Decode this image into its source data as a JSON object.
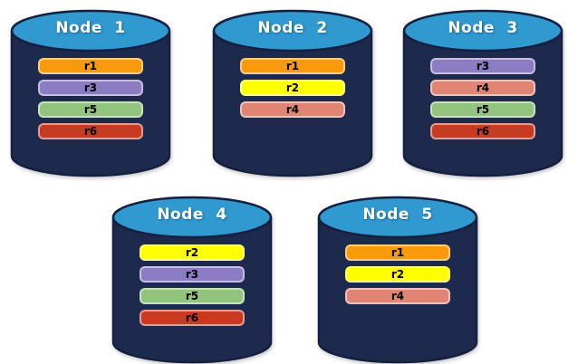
{
  "diagram": {
    "description": "Database nodes with replica assignments",
    "colors": {
      "cylinder_body": "#1E2A4D",
      "cylinder_outline": "#13203F",
      "cylinder_top": "#2F99D0",
      "node_label_text": "#FFFFFF",
      "bar_text": "#000000",
      "background": "#FFFFFF"
    },
    "replica_colors": {
      "r1": "#F89A0B",
      "r2": "#FFFF00",
      "r3": "#8C7CC4",
      "r4": "#E08573",
      "r5": "#93C47D",
      "r6": "#C83A22"
    },
    "nodes": [
      {
        "label": "Node 1",
        "replicas": [
          "r1",
          "r3",
          "r5",
          "r6"
        ]
      },
      {
        "label": "Node 2",
        "replicas": [
          "r1",
          "r2",
          "r4"
        ]
      },
      {
        "label": "Node 3",
        "replicas": [
          "r3",
          "r4",
          "r5",
          "r6"
        ]
      },
      {
        "label": "Node 4",
        "replicas": [
          "r2",
          "r3",
          "r5",
          "r6"
        ]
      },
      {
        "label": "Node 5",
        "replicas": [
          "r1",
          "r2",
          "r4"
        ]
      }
    ]
  }
}
